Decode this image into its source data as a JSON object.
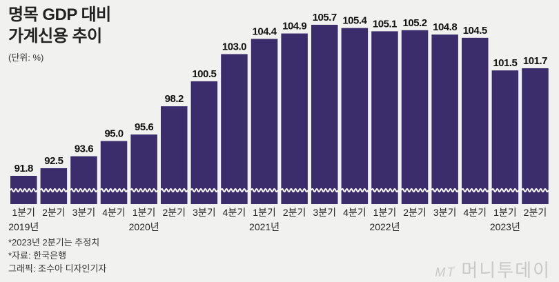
{
  "chart_data": {
    "type": "bar",
    "title": "명목 GDP 대비 가계신용 추이",
    "unit": "(단위: %)",
    "categories": [
      "1분기",
      "2분기",
      "3분기",
      "4분기",
      "1분기",
      "2분기",
      "3분기",
      "4분기",
      "1분기",
      "2분기",
      "3분기",
      "4분기",
      "1분기",
      "2분기",
      "3분기",
      "4분기",
      "1분기",
      "2분기"
    ],
    "years": [
      {
        "label": "2019년",
        "index": 0
      },
      {
        "label": "2020년",
        "index": 4
      },
      {
        "label": "2021년",
        "index": 8
      },
      {
        "label": "2022년",
        "index": 12
      },
      {
        "label": "2023년",
        "index": 16
      }
    ],
    "values": [
      91.8,
      92.5,
      93.6,
      95.0,
      95.6,
      98.2,
      100.5,
      103.0,
      104.4,
      104.9,
      105.7,
      105.4,
      105.1,
      105.2,
      104.8,
      104.5,
      101.5,
      101.7
    ],
    "axis_break": true,
    "grid": false,
    "bar_color": "#3b2c6c"
  },
  "notes": [
    "*2023년 2분기는 추정치",
    "*자료: 한국은행",
    "그래픽: 조수아 디자인기자"
  ],
  "watermark": {
    "logo": "MT",
    "text": "머니투데이"
  }
}
